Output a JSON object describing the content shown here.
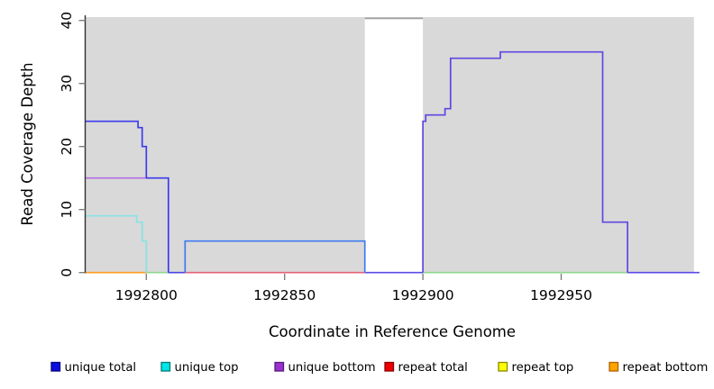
{
  "chart_data": {
    "type": "line",
    "subtype": "step-coverage",
    "title": "",
    "xlabel": "Coordinate in Reference Genome",
    "ylabel": "Read Coverage Depth",
    "xlim": [
      1992778,
      1993000
    ],
    "ylim": [
      0,
      40
    ],
    "grid": "off",
    "legend_position": "bottom",
    "xticks": [
      {
        "v": 1992800,
        "label": "1992800"
      },
      {
        "v": 1992850,
        "label": "1992850"
      },
      {
        "v": 1992900,
        "label": "1992900"
      },
      {
        "v": 1992950,
        "label": "1992950"
      }
    ],
    "yticks": [
      {
        "v": 0,
        "label": "0"
      },
      {
        "v": 10,
        "label": "10"
      },
      {
        "v": 20,
        "label": "20"
      },
      {
        "v": 30,
        "label": "30"
      },
      {
        "v": 40,
        "label": "40"
      }
    ],
    "shading": {
      "data_region": [
        1992778,
        1992998
      ],
      "gap_region": [
        1992879,
        1992900
      ]
    },
    "series": [
      {
        "name": "unique total",
        "color": "#0000ff",
        "step_points": [
          [
            1992778,
            24
          ],
          [
            1992797,
            23
          ],
          [
            1992798.5,
            20
          ],
          [
            1992800,
            15
          ],
          [
            1992808,
            0
          ],
          [
            1992814,
            5
          ],
          [
            1992879,
            0
          ],
          [
            1992900,
            24
          ],
          [
            1992901,
            25
          ],
          [
            1992908,
            26
          ],
          [
            1992910,
            34
          ],
          [
            1992928,
            35
          ],
          [
            1992965,
            8
          ],
          [
            1992974,
            0
          ]
        ]
      },
      {
        "name": "unique top",
        "color": "#00ffff",
        "step_points": [
          [
            1992778,
            9
          ],
          [
            1992796.5,
            8
          ],
          [
            1992798.5,
            5
          ],
          [
            1992800,
            0
          ]
        ]
      },
      {
        "name": "unique bottom",
        "color": "#9932cc",
        "step_points": [
          [
            1992778,
            15
          ],
          [
            1992808,
            0
          ],
          [
            1992900,
            24
          ],
          [
            1992901,
            25
          ],
          [
            1992908,
            26
          ],
          [
            1992910,
            34
          ],
          [
            1992928,
            35
          ],
          [
            1992965,
            8
          ],
          [
            1992974,
            0
          ]
        ]
      },
      {
        "name": "repeat total",
        "color": "#ff0000",
        "step_points": [
          [
            1992778,
            0
          ]
        ]
      },
      {
        "name": "repeat top",
        "color": "#ffff00",
        "step_points": [
          [
            1992778,
            0
          ]
        ]
      },
      {
        "name": "repeat bottom",
        "color": "#ffa500",
        "step_points": [
          [
            1992778,
            0
          ]
        ]
      }
    ],
    "rendered_lines": [
      {
        "name": "zero-orange-repeat-bottom",
        "color": "#ff9b1e",
        "pts": [
          [
            1992778,
            0
          ],
          [
            1992800,
            0
          ]
        ]
      },
      {
        "name": "zero-green-left",
        "color": "#8fd88f",
        "pts": [
          [
            1992800,
            0
          ],
          [
            1992808,
            0
          ]
        ]
      },
      {
        "name": "zero-indigo-left",
        "color": "#4b44e0",
        "pts": [
          [
            1992808,
            0
          ],
          [
            1992814,
            0
          ]
        ]
      },
      {
        "name": "zero-red",
        "color": "#e56277",
        "pts": [
          [
            1992814,
            0
          ],
          [
            1992879,
            0
          ]
        ]
      },
      {
        "name": "zero-indigo-gap",
        "color": "#5b4ae8",
        "pts": [
          [
            1992879,
            0
          ],
          [
            1992900,
            0
          ]
        ]
      },
      {
        "name": "zero-green-right",
        "color": "#8fd88f",
        "pts": [
          [
            1992900,
            0
          ],
          [
            1992974,
            0
          ]
        ]
      },
      {
        "name": "zero-indigo-right",
        "color": "#5b4ae8",
        "pts": [
          [
            1992974,
            0
          ],
          [
            1993000,
            0
          ]
        ]
      },
      {
        "name": "unique-top-line",
        "color": "#87e3e3",
        "pts": [
          [
            1992778,
            9
          ],
          [
            1992796.5,
            9
          ],
          [
            1992796.5,
            8
          ],
          [
            1992798.5,
            8
          ],
          [
            1992798.5,
            5
          ],
          [
            1992800,
            5
          ],
          [
            1992800,
            0
          ]
        ]
      },
      {
        "name": "unique-bottom-line",
        "color": "#b56fe3",
        "pts": [
          [
            1992778,
            15
          ],
          [
            1992801,
            15
          ]
        ]
      },
      {
        "name": "unique-total-left",
        "color": "#3c3cee",
        "pts": [
          [
            1992778,
            24
          ],
          [
            1992797,
            24
          ],
          [
            1992797,
            23
          ],
          [
            1992798.5,
            23
          ],
          [
            1992798.5,
            20
          ],
          [
            1992800,
            20
          ],
          [
            1992800,
            15
          ],
          [
            1992808,
            15
          ],
          [
            1992808,
            0
          ]
        ]
      },
      {
        "name": "unique-total-mid",
        "color": "#3f7bf0",
        "pts": [
          [
            1992814,
            0
          ],
          [
            1992814,
            5
          ],
          [
            1992879,
            5
          ],
          [
            1992879,
            0
          ]
        ]
      },
      {
        "name": "unique-total-right",
        "color": "#5f46e2",
        "pts": [
          [
            1992900,
            0
          ],
          [
            1992900,
            24
          ],
          [
            1992901,
            24
          ],
          [
            1992901,
            25
          ],
          [
            1992908,
            25
          ],
          [
            1992908,
            26
          ],
          [
            1992910,
            26
          ],
          [
            1992910,
            34
          ],
          [
            1992928,
            34
          ],
          [
            1992928,
            35
          ],
          [
            1992965,
            35
          ],
          [
            1992965,
            8
          ],
          [
            1992974,
            8
          ],
          [
            1992974,
            0
          ]
        ]
      }
    ]
  },
  "legend": {
    "items": [
      {
        "label": "unique total",
        "fill": "#0d0de0",
        "border": "#000080"
      },
      {
        "label": "unique top",
        "fill": "#00e6e6",
        "border": "#007a7a"
      },
      {
        "label": "unique bottom",
        "fill": "#9b30d0",
        "border": "#551a78"
      },
      {
        "label": "repeat total",
        "fill": "#ee0000",
        "border": "#8b0000"
      },
      {
        "label": "repeat top",
        "fill": "#ffff00",
        "border": "#8a8a00"
      },
      {
        "label": "repeat bottom",
        "fill": "#ffa500",
        "border": "#b06000"
      }
    ]
  },
  "colors": {
    "plot_bg": "#d9d9d9",
    "gap_bg": "#ffffff",
    "gap_border": "#a0a0a0",
    "axis": "#303030",
    "tick": "#7f7f7f",
    "text": "#000000"
  }
}
